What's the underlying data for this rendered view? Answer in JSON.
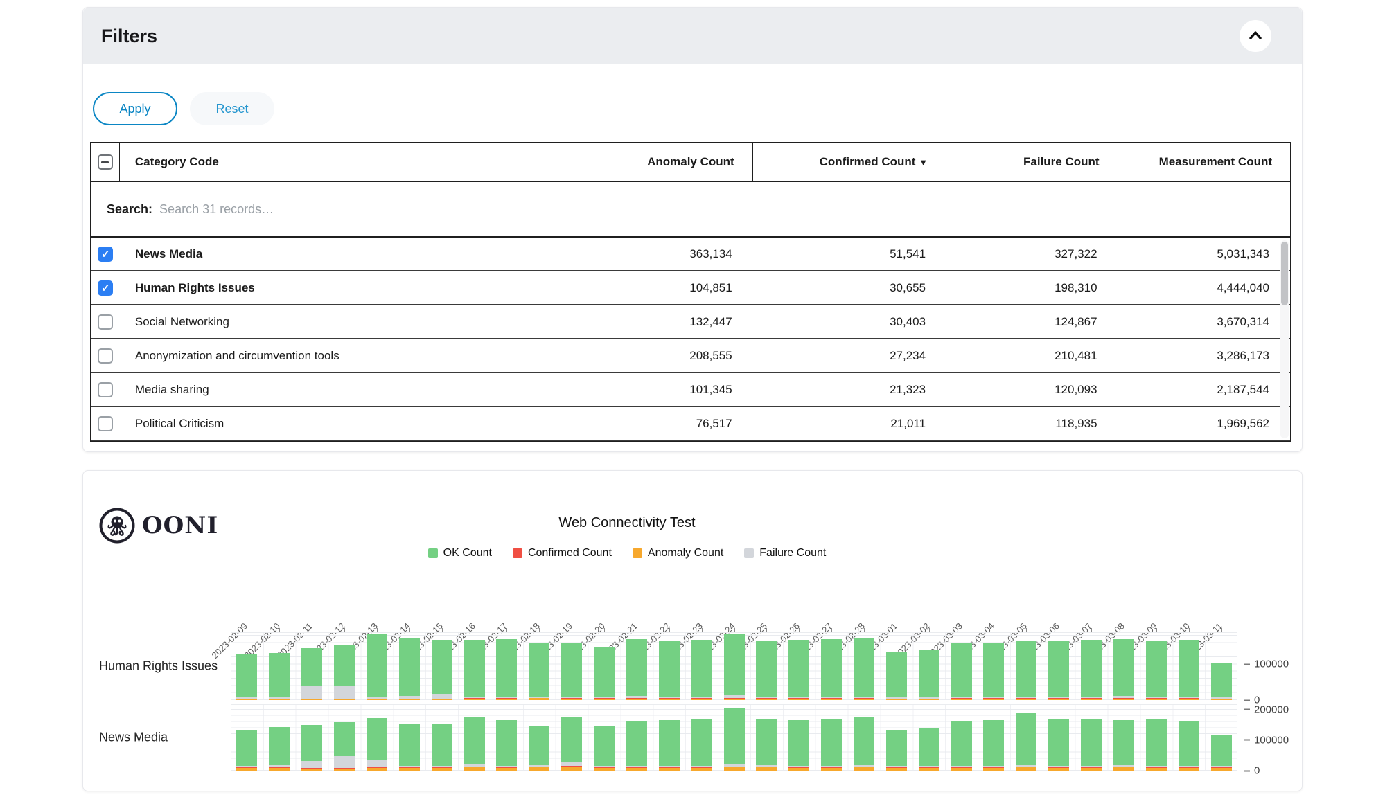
{
  "filters_card": {
    "title": "Filters",
    "collapse_icon": "chevron-up",
    "buttons": {
      "apply_label": "Apply",
      "reset_label": "Reset"
    },
    "accent_color": "#0b86c4",
    "checkbox_color": "#2b7ef3",
    "table": {
      "select_all_state": "indeterminate",
      "header": {
        "category": "Category Code",
        "anomaly": "Anomaly Count",
        "confirmed": "Confirmed Count",
        "sort_indicator": "▼",
        "failure": "Failure Count",
        "measurement": "Measurement Count"
      },
      "search_label": "Search:",
      "search_placeholder": "Search 31 records…",
      "search_value": "",
      "rows": [
        {
          "category": "News Media",
          "checked": true,
          "anomaly": "363,134",
          "confirmed": "51,541",
          "failure": "327,322",
          "measurement": "5,031,343"
        },
        {
          "category": "Human Rights Issues",
          "checked": true,
          "anomaly": "104,851",
          "confirmed": "30,655",
          "failure": "198,310",
          "measurement": "4,444,040"
        },
        {
          "category": "Social Networking",
          "checked": false,
          "anomaly": "132,447",
          "confirmed": "30,403",
          "failure": "124,867",
          "measurement": "3,670,314"
        },
        {
          "category": "Anonymization and circumvention tools",
          "checked": false,
          "anomaly": "208,555",
          "confirmed": "27,234",
          "failure": "210,481",
          "measurement": "3,286,173"
        },
        {
          "category": "Media sharing",
          "checked": false,
          "anomaly": "101,345",
          "confirmed": "21,323",
          "failure": "120,093",
          "measurement": "2,187,544"
        },
        {
          "category": "Political Criticism",
          "checked": false,
          "anomaly": "76,517",
          "confirmed": "21,011",
          "failure": "118,935",
          "measurement": "1,969,562"
        }
      ]
    }
  },
  "chart_card": {
    "logo": {
      "icon": "ooni-octopus",
      "text": "OONI"
    },
    "title": "Web Connectivity Test",
    "legend": [
      {
        "label": "OK Count",
        "color": "#74d083"
      },
      {
        "label": "Confirmed Count",
        "color": "#f04f43"
      },
      {
        "label": "Anomaly Count",
        "color": "#f7a82d"
      },
      {
        "label": "Failure Count",
        "color": "#d3d6db"
      }
    ]
  },
  "chart_data": {
    "type": "bar",
    "stacked": true,
    "title": "Web Connectivity Test",
    "grid": true,
    "legend_position": "top",
    "x": [
      "2023-02-09",
      "2023-02-10",
      "2023-02-11",
      "2023-02-12",
      "2023-02-13",
      "2023-02-14",
      "2023-02-15",
      "2023-02-16",
      "2023-02-17",
      "2023-02-18",
      "2023-02-19",
      "2023-02-20",
      "2023-02-21",
      "2023-02-22",
      "2023-02-23",
      "2023-02-24",
      "2023-02-25",
      "2023-02-26",
      "2023-02-27",
      "2023-02-28",
      "2023-03-01",
      "2023-03-02",
      "2023-03-03",
      "2023-03-04",
      "2023-03-05",
      "2023-03-06",
      "2023-03-07",
      "2023-03-08",
      "2023-03-09",
      "2023-03-10",
      "2023-03-11"
    ],
    "facets": [
      {
        "row": "Human Rights Issues",
        "ylim": [
          0,
          190000
        ],
        "yticks": [
          0,
          100000
        ],
        "series": [
          {
            "name": "Anomaly Count",
            "values": [
              2500,
              2500,
              2000,
              2500,
              3000,
              3000,
              3000,
              3500,
              3500,
              5000,
              4000,
              3500,
              3500,
              3500,
              3500,
              4000,
              3500,
              3500,
              3500,
              3500,
              3000,
              3000,
              3500,
              3500,
              3500,
              3500,
              3500,
              4000,
              3500,
              3500,
              3000
            ]
          },
          {
            "name": "Confirmed Count",
            "values": [
              2000,
              2000,
              1200,
              2000,
              1500,
              1500,
              1500,
              1500,
              2000,
              1500,
              1500,
              1500,
              1500,
              1500,
              2000,
              1500,
              1500,
              1500,
              1500,
              1500,
              1500,
              1500,
              1500,
              1500,
              1500,
              1500,
              1500,
              2000,
              1500,
              1500,
              1500
            ]
          },
          {
            "name": "Failure Count",
            "values": [
              4000,
              5000,
              38000,
              36000,
              5000,
              8000,
              14000,
              5000,
              5000,
              4000,
              4000,
              4000,
              6000,
              4000,
              4000,
              8000,
              4000,
              4000,
              4000,
              4000,
              4000,
              4000,
              4000,
              4000,
              5000,
              4000,
              4000,
              6000,
              4000,
              4000,
              4000
            ]
          },
          {
            "name": "OK Count",
            "values": [
              120000,
              122000,
              105000,
              112000,
              175000,
              162000,
              150000,
              158000,
              160000,
              148000,
              152000,
              138000,
              160000,
              158000,
              160000,
              172000,
              158000,
              160000,
              162000,
              165000,
              128000,
              132000,
              150000,
              152000,
              155000,
              158000,
              160000,
              158000,
              155000,
              160000,
              95000
            ]
          }
        ]
      },
      {
        "row": "News Media",
        "ylim": [
          0,
          218000
        ],
        "yticks": [
          0,
          100000,
          200000
        ],
        "series": [
          {
            "name": "Anomaly Count",
            "values": [
              10000,
              10000,
              8000,
              8000,
              10000,
              10000,
              10000,
              11000,
              10000,
              12000,
              13000,
              10000,
              10000,
              10000,
              10000,
              12000,
              11000,
              10000,
              10000,
              11000,
              9000,
              9000,
              10000,
              10000,
              11000,
              10000,
              10000,
              12000,
              10000,
              10000,
              9000
            ]
          },
          {
            "name": "Confirmed Count",
            "values": [
              2000,
              1500,
              2000,
              2000,
              1500,
              2000,
              2000,
              1500,
              1500,
              2000,
              2000,
              2000,
              1500,
              1500,
              1500,
              1500,
              2000,
              1500,
              1500,
              1500,
              1500,
              1500,
              1500,
              1500,
              1500,
              1500,
              2000,
              1500,
              2000,
              1500,
              1500
            ]
          },
          {
            "name": "Failure Count",
            "values": [
              5000,
              6000,
              22000,
              38000,
              22000,
              5000,
              5000,
              8000,
              5000,
              5000,
              12000,
              5000,
              5000,
              5000,
              5000,
              8000,
              5000,
              5000,
              5000,
              5000,
              5000,
              5000,
              5000,
              5000,
              6000,
              5000,
              5000,
              5000,
              5000,
              5000,
              5000
            ]
          },
          {
            "name": "OK Count",
            "values": [
              118000,
              125000,
              118000,
              112000,
              140000,
              138000,
              135000,
              155000,
              150000,
              128000,
              150000,
              128000,
              148000,
              150000,
              152000,
              185000,
              152000,
              150000,
              153000,
              158000,
              118000,
              125000,
              148000,
              150000,
              172000,
              152000,
              150000,
              148000,
              150000,
              148000,
              100000
            ]
          }
        ]
      }
    ]
  }
}
